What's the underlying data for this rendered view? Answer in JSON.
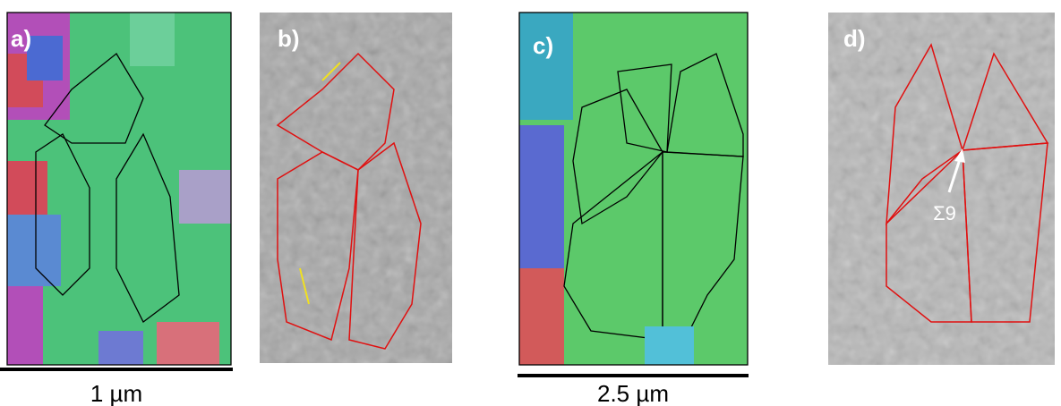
{
  "panels": [
    {
      "label": "a)"
    },
    {
      "label": "b)"
    },
    {
      "label": "c)"
    },
    {
      "label": "d)"
    }
  ],
  "scale_bars": [
    {
      "label": "1 µm"
    },
    {
      "label": "2.5 µm"
    }
  ],
  "annotation": "Σ9"
}
